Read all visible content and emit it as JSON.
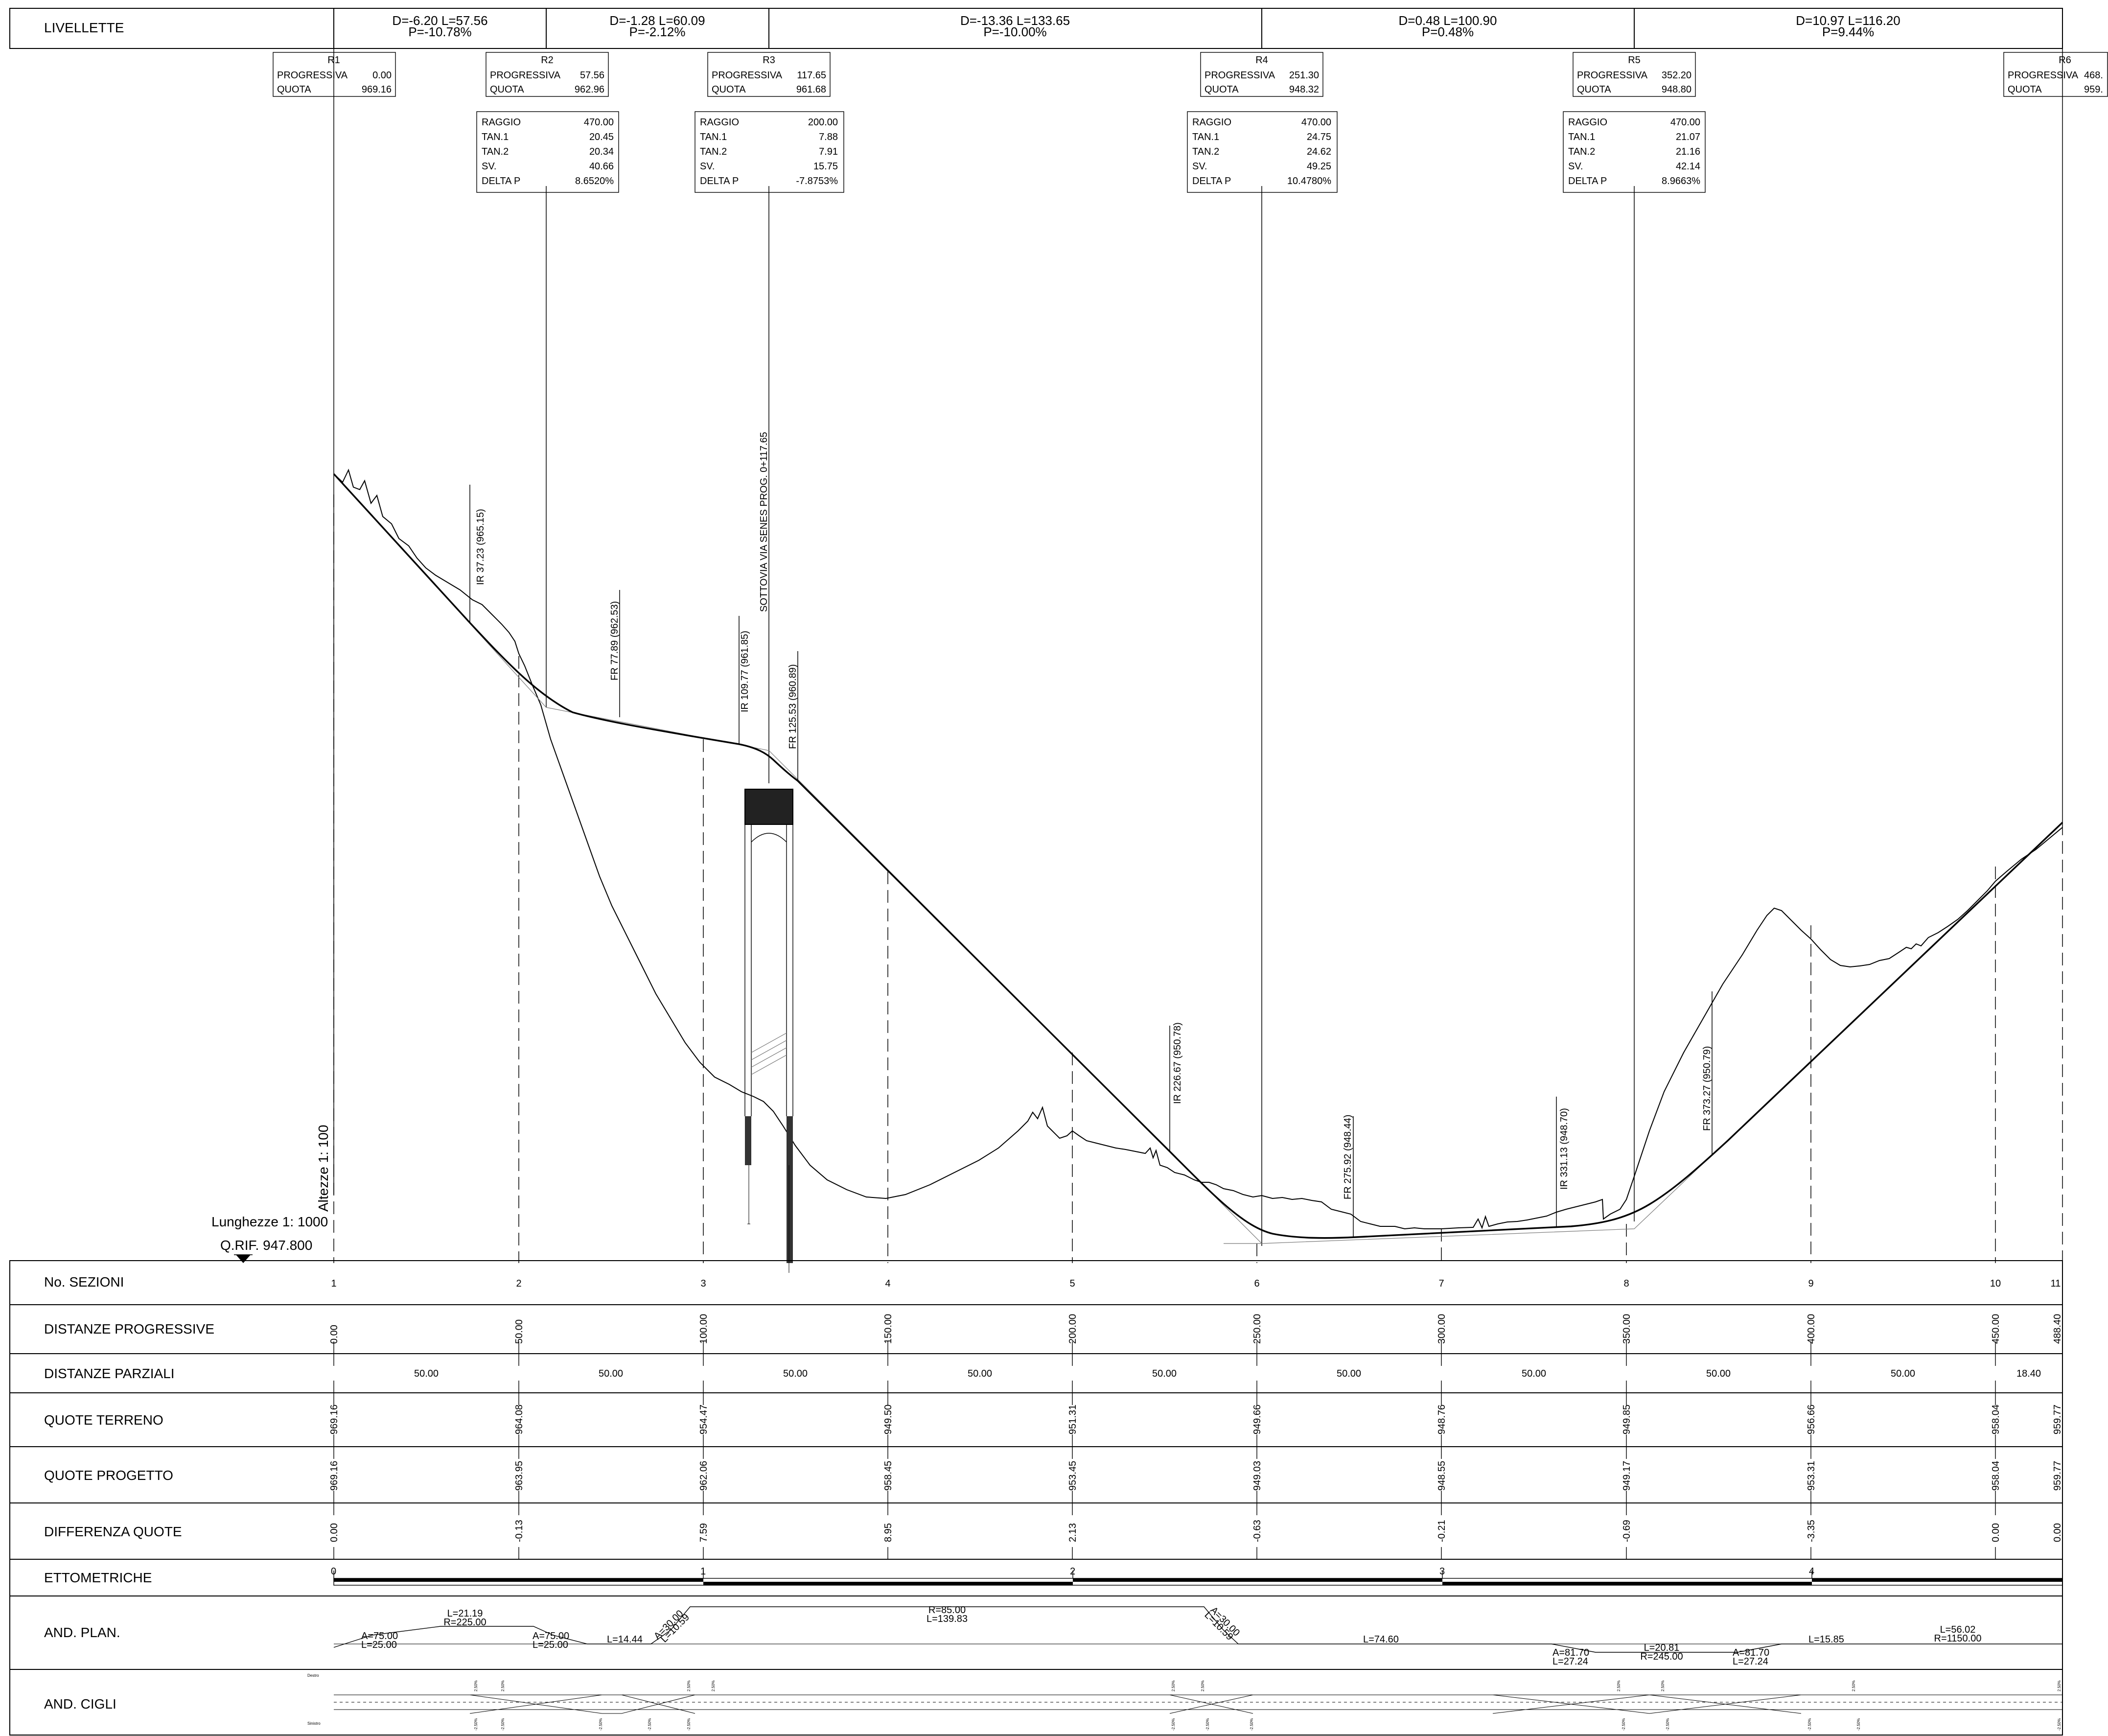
{
  "livellette": {
    "label": "LIVELLETTE",
    "segments": [
      {
        "d": "D=-6.20 L=57.56",
        "p": "P=-10.78%"
      },
      {
        "d": "D=-1.28 L=60.09",
        "p": "P=-2.12%"
      },
      {
        "d": "D=-13.36 L=133.65",
        "p": "P=-10.00%"
      },
      {
        "d": "D=0.48 L=100.90",
        "p": "P=0.48%"
      },
      {
        "d": "D=10.97 L=116.20",
        "p": "P=9.44%"
      }
    ]
  },
  "vertices": [
    {
      "name": "R1",
      "progressiva_label": "PROGRESSIVA",
      "progressiva": "0.00",
      "quota_label": "QUOTA",
      "quota": "969.16"
    },
    {
      "name": "R2",
      "progressiva_label": "PROGRESSIVA",
      "progressiva": "57.56",
      "quota_label": "QUOTA",
      "quota": "962.96"
    },
    {
      "name": "R3",
      "progressiva_label": "PROGRESSIVA",
      "progressiva": "117.65",
      "quota_label": "QUOTA",
      "quota": "961.68"
    },
    {
      "name": "R4",
      "progressiva_label": "PROGRESSIVA",
      "progressiva": "251.30",
      "quota_label": "QUOTA",
      "quota": "948.32"
    },
    {
      "name": "R5",
      "progressiva_label": "PROGRESSIVA",
      "progressiva": "352.20",
      "quota_label": "QUOTA",
      "quota": "948.80"
    },
    {
      "name": "R6",
      "progressiva_label": "PROGRESSIVA",
      "progressiva": "468.",
      "quota_label": "QUOTA",
      "quota": "959."
    }
  ],
  "curves": [
    {
      "labels": [
        "RAGGIO",
        "TAN.1",
        "TAN.2",
        "SV.",
        "DELTA P"
      ],
      "values": [
        "470.00",
        "20.45",
        "20.34",
        "40.66",
        "8.6520%"
      ]
    },
    {
      "labels": [
        "RAGGIO",
        "TAN.1",
        "TAN.2",
        "SV.",
        "DELTA P"
      ],
      "values": [
        "200.00",
        "7.88",
        "7.91",
        "15.75",
        "-7.8753%"
      ]
    },
    {
      "labels": [
        "RAGGIO",
        "TAN.1",
        "TAN.2",
        "SV.",
        "DELTA P"
      ],
      "values": [
        "470.00",
        "24.75",
        "24.62",
        "49.25",
        "10.4780%"
      ]
    },
    {
      "labels": [
        "RAGGIO",
        "TAN.1",
        "TAN.2",
        "SV.",
        "DELTA P"
      ],
      "values": [
        "470.00",
        "21.07",
        "21.16",
        "42.14",
        "8.9663%"
      ]
    }
  ],
  "annotations": [
    {
      "text": "IR  37.23  (965.15)"
    },
    {
      "text": "FR  77.89  (962.53)"
    },
    {
      "text": "IR  109.77  (961.85)"
    },
    {
      "text": "SOTTOVIA VIA SENES PROG. 0+117.65"
    },
    {
      "text": "FR  125.53  (960.89)"
    },
    {
      "text": "IR  226.67  (950.78)"
    },
    {
      "text": "FR  275.92  (948.44)"
    },
    {
      "text": "IR  331.13  (948.70)"
    },
    {
      "text": "FR  373.27  (950.79)"
    }
  ],
  "scales": {
    "heights": "Altezze 1: 100",
    "lengths": "Lunghezze 1: 1000",
    "reference": "Q.RIF. 947.800"
  },
  "table": {
    "labels": {
      "sezioni": "No. SEZIONI",
      "progressive": "DISTANZE PROGRESSIVE",
      "parziali": "DISTANZE PARZIALI",
      "terreno": "QUOTE TERRENO",
      "progetto": "QUOTE PROGETTO",
      "differenza": "DIFFERENZA QUOTE",
      "ettometriche": "ETTOMETRICHE",
      "and_plan": "AND. PLAN.",
      "and_cigli": "AND. CIGLI"
    },
    "sections": [
      "1",
      "2",
      "3",
      "4",
      "5",
      "6",
      "7",
      "8",
      "9",
      "10",
      "11"
    ],
    "progressive": [
      "0.00",
      "50.00",
      "100.00",
      "150.00",
      "200.00",
      "250.00",
      "300.00",
      "350.00",
      "400.00",
      "450.00",
      "488.40"
    ],
    "parziali": [
      "50.00",
      "50.00",
      "50.00",
      "50.00",
      "50.00",
      "50.00",
      "50.00",
      "50.00",
      "50.00",
      "18.40"
    ],
    "terreno": [
      "969.16",
      "964.08",
      "954.47",
      "949.50",
      "951.31",
      "949.66",
      "948.76",
      "949.85",
      "956.66",
      "958.04",
      "959.77"
    ],
    "progetto": [
      "969.16",
      "963.95",
      "962.06",
      "958.45",
      "953.45",
      "949.03",
      "948.55",
      "949.17",
      "953.31",
      "958.04",
      "959.77"
    ],
    "differenza": [
      "0.00",
      "-0.13",
      "7.59",
      "8.95",
      "2.13",
      "-0.63",
      "-0.21",
      "-0.69",
      "-3.35",
      "0.00",
      "0.00"
    ],
    "ettometriche": [
      "0",
      "1",
      "2",
      "3",
      "4"
    ],
    "and_plan_labels": [
      {
        "a": "A=75.00",
        "b": "L=25.00"
      },
      {
        "a": "L=21.19",
        "b": "R=225.00"
      },
      {
        "a": "A=75.00",
        "b": "L=25.00"
      },
      {
        "a": "L=14.44",
        "b": ""
      },
      {
        "a": "A=30.00",
        "b": "L=10.59"
      },
      {
        "a": "R=85.00",
        "b": "L=139.83"
      },
      {
        "a": "A=30.00",
        "b": "L=10.59"
      },
      {
        "a": "L=74.60",
        "b": ""
      },
      {
        "a": "A=81.70",
        "b": "L=27.24"
      },
      {
        "a": "L=20.81",
        "b": "R=245.00"
      },
      {
        "a": "A=81.70",
        "b": "L=27.24"
      },
      {
        "a": "L=15.85",
        "b": ""
      },
      {
        "a": "L=56.02",
        "b": "R=1150.00"
      }
    ],
    "cigli": {
      "dx_label": "Destro",
      "sx_label": "Sinistro",
      "pos": "2.50%",
      "neg": "-2.50%"
    }
  }
}
